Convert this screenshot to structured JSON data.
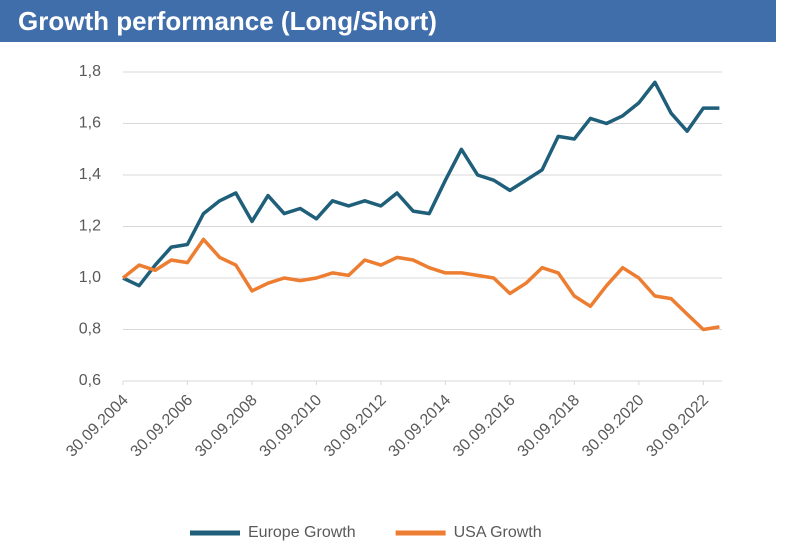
{
  "chart_data": {
    "type": "line",
    "title": "Growth performance (Long/Short)",
    "x": [
      "30.09.2004",
      "31.03.2005",
      "30.09.2005",
      "31.03.2006",
      "30.09.2006",
      "31.03.2007",
      "30.09.2007",
      "31.03.2008",
      "30.09.2008",
      "31.03.2009",
      "30.09.2009",
      "31.03.2010",
      "30.09.2010",
      "31.03.2011",
      "30.09.2011",
      "31.03.2012",
      "30.09.2012",
      "31.03.2013",
      "30.09.2013",
      "31.03.2014",
      "30.09.2014",
      "31.03.2015",
      "30.09.2015",
      "31.03.2016",
      "30.09.2016",
      "31.03.2017",
      "30.09.2017",
      "31.03.2018",
      "30.09.2018",
      "31.03.2019",
      "30.09.2019",
      "31.03.2020",
      "30.09.2020",
      "31.03.2021",
      "30.09.2021",
      "31.03.2022",
      "30.09.2022",
      "31.03.2023"
    ],
    "series": [
      {
        "name": "Europe Growth",
        "color": "#1f5f7a",
        "values": [
          1.0,
          0.97,
          1.05,
          1.12,
          1.13,
          1.25,
          1.3,
          1.33,
          1.22,
          1.32,
          1.25,
          1.27,
          1.23,
          1.3,
          1.28,
          1.3,
          1.28,
          1.33,
          1.26,
          1.25,
          1.38,
          1.5,
          1.4,
          1.38,
          1.34,
          1.38,
          1.42,
          1.55,
          1.54,
          1.62,
          1.6,
          1.63,
          1.68,
          1.76,
          1.64,
          1.57,
          1.66,
          1.66
        ]
      },
      {
        "name": "USA Growth",
        "color": "#ed7d31",
        "values": [
          1.0,
          1.05,
          1.03,
          1.07,
          1.06,
          1.15,
          1.08,
          1.05,
          0.95,
          0.98,
          1.0,
          0.99,
          1.0,
          1.02,
          1.01,
          1.07,
          1.05,
          1.08,
          1.07,
          1.04,
          1.02,
          1.02,
          1.01,
          1.0,
          0.94,
          0.98,
          1.04,
          1.02,
          0.93,
          0.89,
          0.97,
          1.04,
          1.0,
          0.93,
          0.92,
          0.86,
          0.8,
          0.81
        ]
      }
    ],
    "xlim": [
      "30.09.2004",
      "30.04.2023"
    ],
    "xticks": [
      "30.09.2004",
      "30.09.2006",
      "30.09.2008",
      "30.09.2010",
      "30.09.2012",
      "30.09.2014",
      "30.09.2016",
      "30.09.2018",
      "30.09.2020",
      "30.09.2022"
    ],
    "ylim": [
      0.6,
      1.8
    ],
    "yticks": [
      {
        "value": 0.6,
        "label": "0,6"
      },
      {
        "value": 0.8,
        "label": "0,8"
      },
      {
        "value": 1.0,
        "label": "1,0"
      },
      {
        "value": 1.2,
        "label": "1,2"
      },
      {
        "value": 1.4,
        "label": "1,4"
      },
      {
        "value": 1.6,
        "label": "1,6"
      },
      {
        "value": 1.8,
        "label": "1,8"
      }
    ],
    "grid": true,
    "legend": "bottom"
  }
}
